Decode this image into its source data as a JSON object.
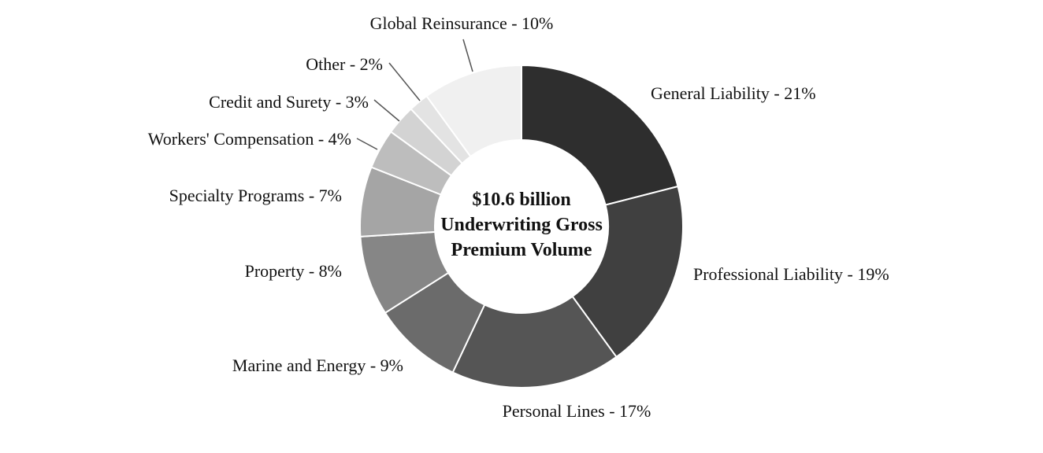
{
  "chart_data": {
    "type": "pie",
    "variant": "donut",
    "center_text": [
      "$10.6 billion",
      "Underwriting Gross",
      "Premium Volume"
    ],
    "slices": [
      {
        "name": "General Liability",
        "value": 21,
        "label": "General Liability - 21%",
        "color": "#2e2e2e"
      },
      {
        "name": "Professional Liability",
        "value": 19,
        "label": "Professional Liability - 19%",
        "color": "#404040"
      },
      {
        "name": "Personal Lines",
        "value": 17,
        "label": "Personal Lines - 17%",
        "color": "#555555"
      },
      {
        "name": "Marine and Energy",
        "value": 9,
        "label": "Marine and Energy - 9%",
        "color": "#6b6b6b"
      },
      {
        "name": "Property",
        "value": 8,
        "label": "Property - 8%",
        "color": "#868686"
      },
      {
        "name": "Specialty Programs",
        "value": 7,
        "label": "Specialty Programs - 7%",
        "color": "#a5a5a5"
      },
      {
        "name": "Workers' Compensation",
        "value": 4,
        "label": "Workers' Compensation - 4%",
        "color": "#bdbdbd"
      },
      {
        "name": "Credit and Surety",
        "value": 3,
        "label": "Credit and Surety - 3%",
        "color": "#d3d3d3"
      },
      {
        "name": "Other",
        "value": 2,
        "label": "Other - 2%",
        "color": "#e3e3e3"
      },
      {
        "name": "Global Reinsurance",
        "value": 10,
        "label": "Global Reinsurance - 10%",
        "color": "#f0f0f0"
      }
    ]
  }
}
